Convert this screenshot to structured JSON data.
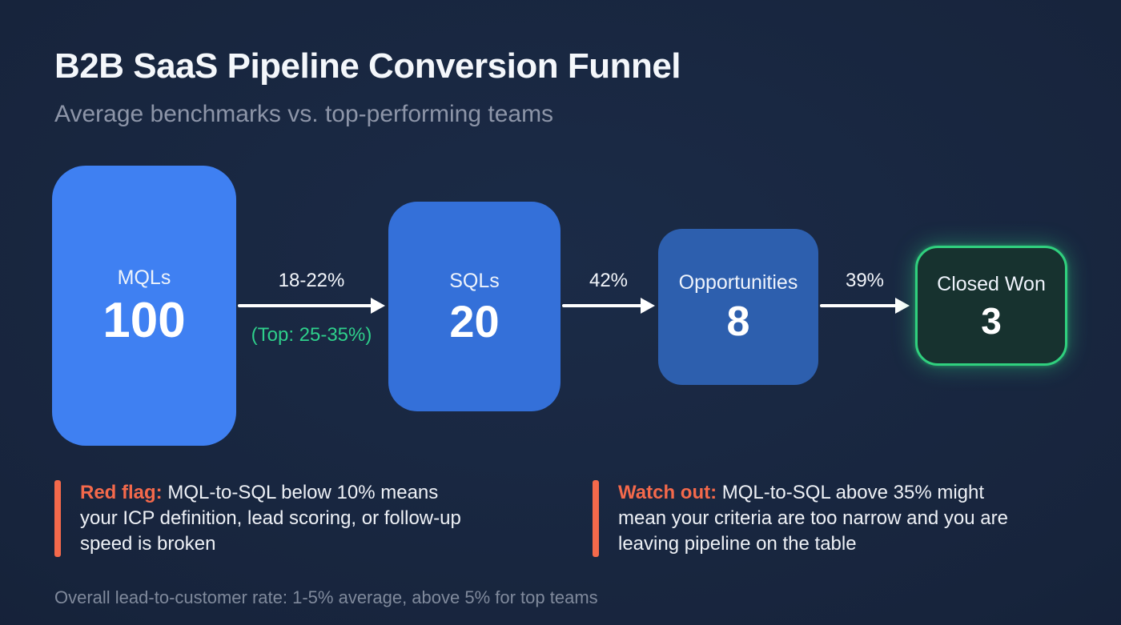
{
  "header": {
    "title": "B2B SaaS Pipeline Conversion Funnel",
    "subtitle": "Average benchmarks vs. top-performing teams"
  },
  "funnel": {
    "stages": [
      {
        "label": "MQLs",
        "value": "100"
      },
      {
        "label": "SQLs",
        "value": "20"
      },
      {
        "label": "Opportunities",
        "value": "8"
      },
      {
        "label": "Closed Won",
        "value": "3"
      }
    ],
    "transitions": [
      {
        "rate": "18-22%",
        "top_rate": "(Top: 25-35%)"
      },
      {
        "rate": "42%"
      },
      {
        "rate": "39%"
      }
    ]
  },
  "callouts": [
    {
      "label": "Red flag:",
      "text": "MQL-to-SQL below 10% means\nyour ICP definition, lead scoring, or follow-up\nspeed is broken"
    },
    {
      "label": "Watch out:",
      "text": "MQL-to-SQL above 35% might\nmean your criteria are too narrow and you are\nleaving pipeline on the table"
    }
  ],
  "footer": {
    "note": "Overall lead-to-customer rate: 1-5% average, above 5% for top teams"
  },
  "colors": {
    "background": "#17243c",
    "stage_mqls": "#3f80f2",
    "stage_sqls": "#3470d9",
    "stage_opportunities": "#2d5fae",
    "closed_won_border": "#30d07e",
    "accent_green": "#2ecf8b",
    "accent_orange": "#f4694b"
  }
}
